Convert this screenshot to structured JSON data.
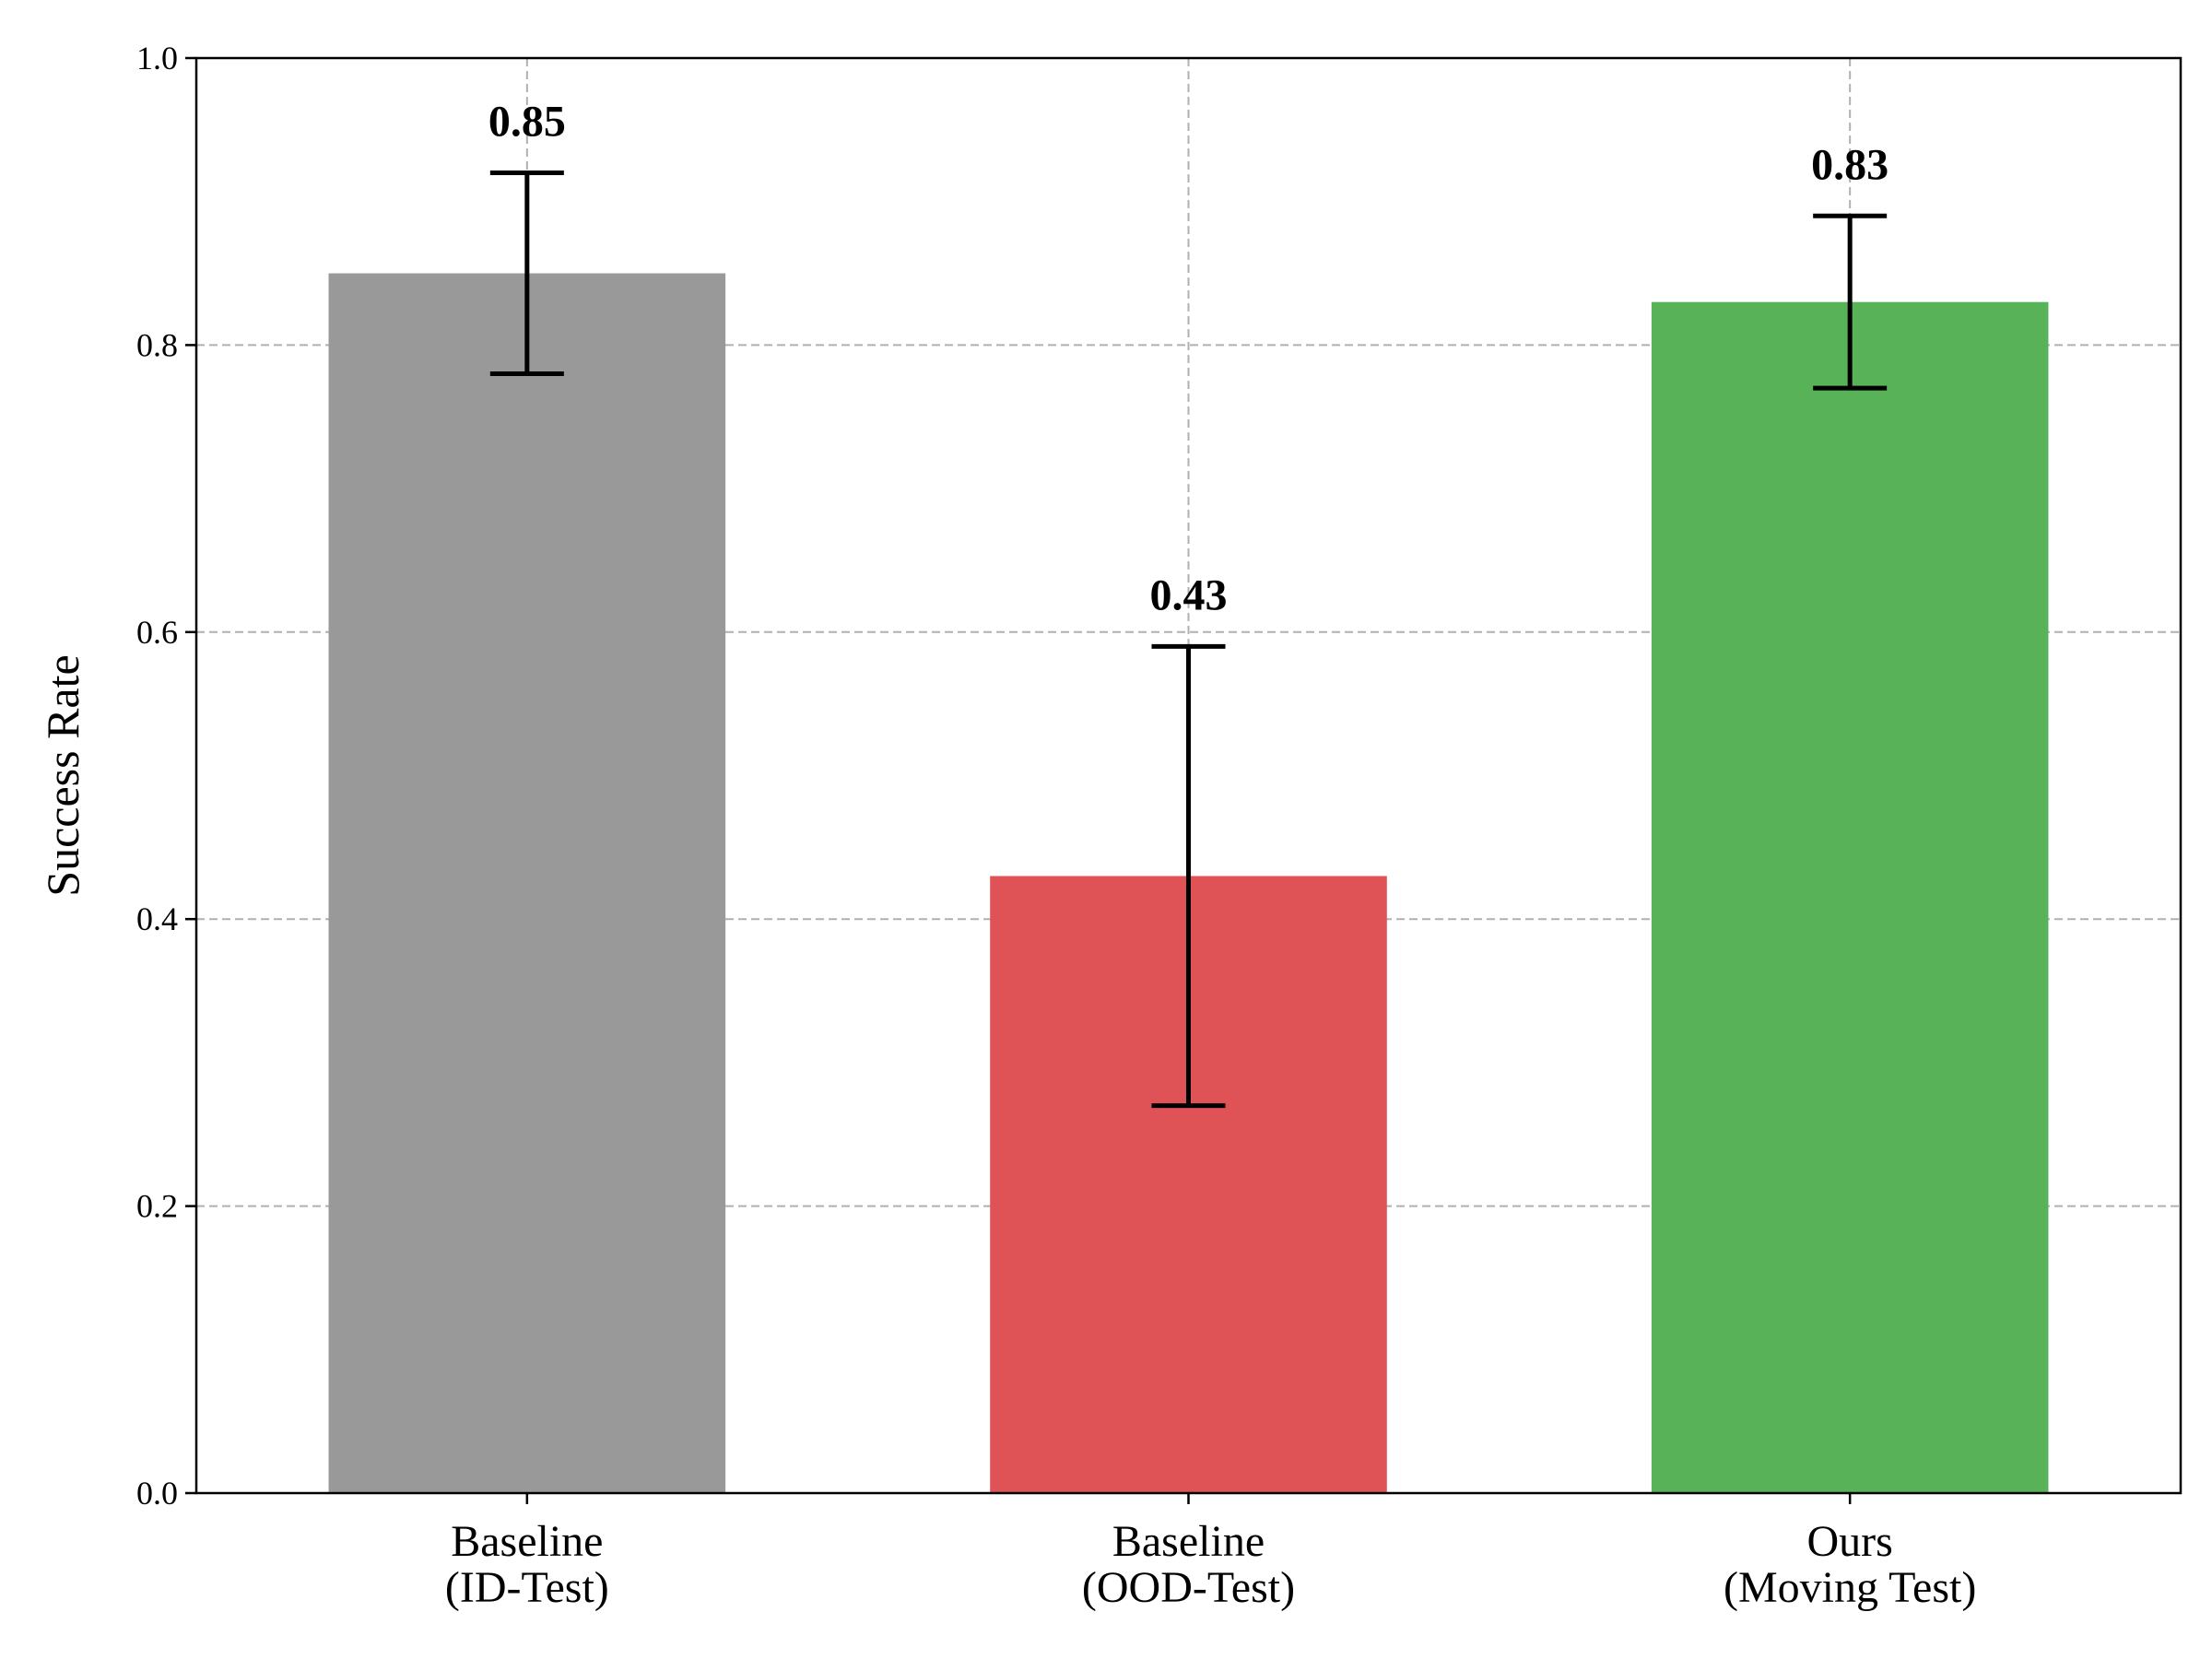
{
  "chart_data": {
    "type": "bar",
    "categories": [
      [
        "Baseline",
        "(ID-Test)"
      ],
      [
        "Baseline",
        "(OOD-Test)"
      ],
      [
        "Ours",
        "(Moving Test)"
      ]
    ],
    "values": [
      0.85,
      0.43,
      0.83
    ],
    "value_labels": [
      "0.85",
      "0.43",
      "0.83"
    ],
    "error_low": [
      0.78,
      0.27,
      0.77
    ],
    "error_high": [
      0.92,
      0.59,
      0.89
    ],
    "colors": [
      "#999999",
      "#df5356",
      "#58b358"
    ],
    "ylabel": "Success Rate",
    "xlabel": "",
    "title": "",
    "ylim": [
      0.0,
      1.0
    ],
    "yticks": [
      0.0,
      0.2,
      0.4,
      0.6,
      0.8,
      1.0
    ],
    "ytick_labels": [
      "0.0",
      "0.2",
      "0.4",
      "0.6",
      "0.8",
      "1.0"
    ],
    "grid": true,
    "legend": false
  }
}
